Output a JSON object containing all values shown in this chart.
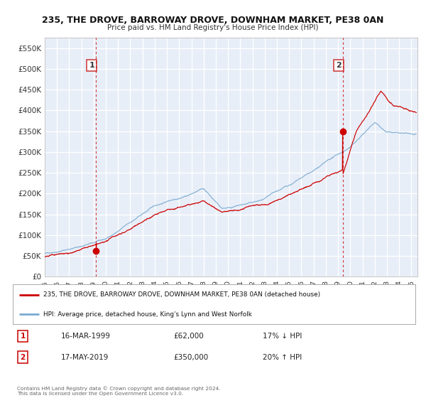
{
  "title": "235, THE DROVE, BARROWAY DROVE, DOWNHAM MARKET, PE38 0AN",
  "subtitle": "Price paid vs. HM Land Registry's House Price Index (HPI)",
  "bg_color": "#ffffff",
  "plot_bg_color": "#e8eef8",
  "grid_color": "#ffffff",
  "x_start": 1995.0,
  "x_end": 2025.5,
  "y_min": 0,
  "y_max": 575000,
  "y_ticks": [
    0,
    50000,
    100000,
    150000,
    200000,
    250000,
    300000,
    350000,
    400000,
    450000,
    500000,
    550000
  ],
  "y_tick_labels": [
    "£0",
    "£50K",
    "£100K",
    "£150K",
    "£200K",
    "£250K",
    "£300K",
    "£350K",
    "£400K",
    "£450K",
    "£500K",
    "£550K"
  ],
  "sale1_x": 1999.21,
  "sale1_y": 62000,
  "sale2_x": 2019.38,
  "sale2_y": 350000,
  "vline1_x": 1999.21,
  "vline2_x": 2019.38,
  "red_color": "#cc0000",
  "blue_color": "#7aaad0",
  "legend_label_red": "235, THE DROVE, BARROWAY DROVE, DOWNHAM MARKET, PE38 0AN (detached house)",
  "legend_label_blue": "HPI: Average price, detached house, King's Lynn and West Norfolk",
  "label1_num": "1",
  "label2_num": "2",
  "info1_date": "16-MAR-1999",
  "info1_price": "£62,000",
  "info1_hpi": "17% ↓ HPI",
  "info2_date": "17-MAY-2019",
  "info2_price": "£350,000",
  "info2_hpi": "20% ↑ HPI",
  "footnote": "Contains HM Land Registry data © Crown copyright and database right 2024.\nThis data is licensed under the Open Government Licence v3.0.",
  "x_ticks": [
    1995,
    1996,
    1997,
    1998,
    1999,
    2000,
    2001,
    2002,
    2003,
    2004,
    2005,
    2006,
    2007,
    2008,
    2009,
    2010,
    2011,
    2012,
    2013,
    2014,
    2015,
    2016,
    2017,
    2018,
    2019,
    2020,
    2021,
    2022,
    2023,
    2024,
    2025
  ]
}
